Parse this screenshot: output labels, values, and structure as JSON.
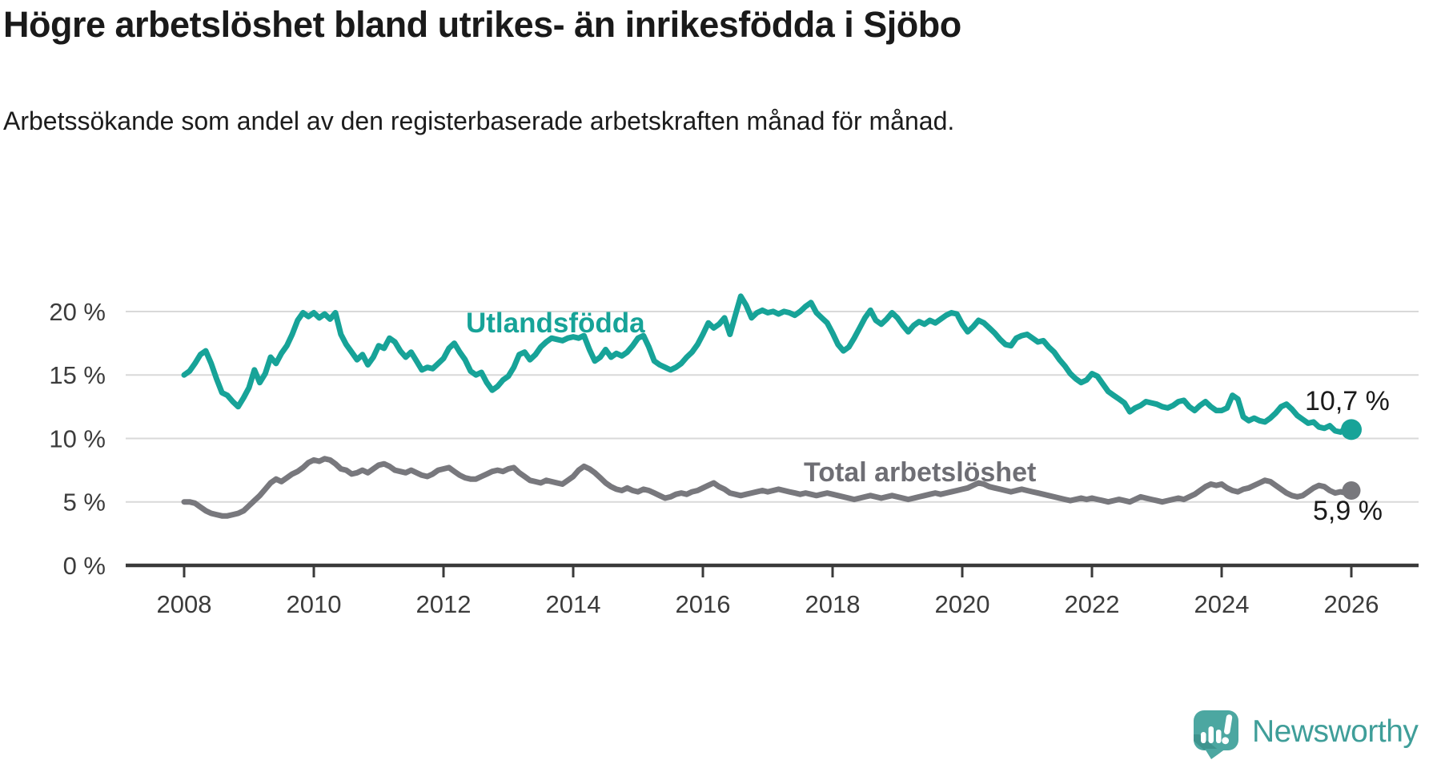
{
  "title": "Högre arbetslöshet bland utrikes- än inrikesfödda i Sjöbo",
  "subtitle": "Arbetssökande som andel av den registerbaserade arbetskraften månad för månad.",
  "branding": {
    "logo_text": "Newsworthy",
    "logo_color": "#3f9e99",
    "icon_color": "#4ca7a1",
    "icon_shadow_color": "#3e948e"
  },
  "colors": {
    "foreign_born_line": "#17a398",
    "total_line": "#78787d",
    "gridline": "#d9d9d9",
    "axis_line": "#3a3a3a",
    "axis_text": "#3c3c3c",
    "annotation_text": "#1a1a1a"
  },
  "chart_data": {
    "type": "line",
    "title": "Högre arbetslöshet bland utrikes- än inrikesfödda i Sjöbo",
    "subtitle": "Arbetssökande som andel av den registerbaserade arbetskraften månad för månad.",
    "unit": "%",
    "frequency": "monthly",
    "start_year": 2008,
    "end_year": 2026,
    "grid": "horizontal-only",
    "legend_position": "inline-labels",
    "x_axis": {
      "ticks": [
        2008,
        2010,
        2012,
        2014,
        2016,
        2018,
        2020,
        2022,
        2024,
        2026
      ],
      "tick_labels": [
        "2008",
        "2010",
        "2012",
        "2014",
        "2016",
        "2018",
        "2020",
        "2022",
        "2024",
        "2026"
      ]
    },
    "y_axis": {
      "min": 0,
      "max": 21.5,
      "ticks": [
        0,
        5,
        10,
        15,
        20
      ],
      "tick_labels": [
        "0 %",
        "5 %",
        "10 %",
        "15 %",
        "20 %"
      ]
    },
    "series": [
      {
        "name": "Utlandsfödda",
        "color": "#17a398",
        "end_label": "10,7 %",
        "end_value": 10.7,
        "values": [
          15.0,
          15.3,
          15.9,
          16.6,
          16.9,
          15.9,
          14.7,
          13.6,
          13.4,
          12.9,
          12.5,
          13.2,
          14.0,
          15.4,
          14.4,
          15.1,
          16.4,
          15.9,
          16.7,
          17.3,
          18.2,
          19.3,
          19.9,
          19.6,
          19.9,
          19.5,
          19.8,
          19.4,
          19.9,
          18.2,
          17.4,
          16.8,
          16.2,
          16.6,
          15.8,
          16.4,
          17.3,
          17.1,
          17.9,
          17.6,
          16.9,
          16.4,
          16.8,
          16.1,
          15.4,
          15.6,
          15.5,
          15.9,
          16.3,
          17.1,
          17.5,
          16.8,
          16.2,
          15.3,
          15.0,
          15.2,
          14.4,
          13.8,
          14.1,
          14.6,
          14.9,
          15.6,
          16.6,
          16.8,
          16.2,
          16.6,
          17.2,
          17.6,
          17.9,
          17.8,
          17.7,
          17.9,
          18.0,
          17.9,
          18.1,
          17.0,
          16.1,
          16.4,
          17.0,
          16.4,
          16.7,
          16.5,
          16.8,
          17.3,
          17.9,
          18.1,
          17.2,
          16.1,
          15.8,
          15.6,
          15.4,
          15.6,
          15.9,
          16.4,
          16.8,
          17.4,
          18.2,
          19.1,
          18.7,
          19.0,
          19.5,
          18.2,
          19.7,
          21.2,
          20.5,
          19.5,
          19.9,
          20.1,
          19.9,
          20.0,
          19.8,
          20.0,
          19.9,
          19.7,
          20.0,
          20.4,
          20.7,
          19.9,
          19.5,
          19.1,
          18.3,
          17.4,
          16.9,
          17.2,
          17.9,
          18.7,
          19.5,
          20.1,
          19.3,
          19.0,
          19.4,
          19.9,
          19.5,
          18.9,
          18.4,
          18.9,
          19.2,
          19.0,
          19.3,
          19.1,
          19.4,
          19.7,
          19.9,
          19.8,
          19.0,
          18.4,
          18.8,
          19.3,
          19.1,
          18.7,
          18.3,
          17.8,
          17.4,
          17.3,
          17.9,
          18.1,
          18.2,
          17.9,
          17.6,
          17.7,
          17.2,
          16.8,
          16.2,
          15.7,
          15.1,
          14.7,
          14.4,
          14.6,
          15.1,
          14.9,
          14.3,
          13.7,
          13.4,
          13.1,
          12.8,
          12.1,
          12.4,
          12.6,
          12.9,
          12.8,
          12.7,
          12.5,
          12.4,
          12.6,
          12.9,
          13.0,
          12.5,
          12.2,
          12.6,
          12.9,
          12.5,
          12.2,
          12.2,
          12.4,
          13.4,
          13.1,
          11.7,
          11.4,
          11.6,
          11.4,
          11.3,
          11.6,
          12.0,
          12.5,
          12.7,
          12.3,
          11.8,
          11.5,
          11.2,
          11.3,
          10.9,
          10.8,
          11.0,
          10.6,
          10.5,
          10.8,
          10.7
        ]
      },
      {
        "name": "Total arbetslöshet",
        "color": "#78787d",
        "end_label": "5,9 %",
        "end_value": 5.9,
        "values": [
          5.0,
          5.0,
          4.9,
          4.6,
          4.3,
          4.1,
          4.0,
          3.9,
          3.9,
          4.0,
          4.1,
          4.3,
          4.7,
          5.1,
          5.5,
          6.0,
          6.5,
          6.8,
          6.6,
          6.9,
          7.2,
          7.4,
          7.7,
          8.1,
          8.3,
          8.2,
          8.4,
          8.3,
          8.0,
          7.6,
          7.5,
          7.2,
          7.3,
          7.5,
          7.3,
          7.6,
          7.9,
          8.0,
          7.8,
          7.5,
          7.4,
          7.3,
          7.5,
          7.3,
          7.1,
          7.0,
          7.2,
          7.5,
          7.6,
          7.7,
          7.4,
          7.1,
          6.9,
          6.8,
          6.8,
          7.0,
          7.2,
          7.4,
          7.5,
          7.4,
          7.6,
          7.7,
          7.3,
          7.0,
          6.7,
          6.6,
          6.5,
          6.7,
          6.6,
          6.5,
          6.4,
          6.7,
          7.0,
          7.5,
          7.8,
          7.6,
          7.3,
          6.9,
          6.5,
          6.2,
          6.0,
          5.9,
          6.1,
          5.9,
          5.8,
          6.0,
          5.9,
          5.7,
          5.5,
          5.3,
          5.4,
          5.6,
          5.7,
          5.6,
          5.8,
          5.9,
          6.1,
          6.3,
          6.5,
          6.2,
          6.0,
          5.7,
          5.6,
          5.5,
          5.6,
          5.7,
          5.8,
          5.9,
          5.8,
          5.9,
          6.0,
          5.9,
          5.8,
          5.7,
          5.6,
          5.7,
          5.6,
          5.5,
          5.6,
          5.7,
          5.6,
          5.5,
          5.4,
          5.3,
          5.2,
          5.3,
          5.4,
          5.5,
          5.4,
          5.3,
          5.4,
          5.5,
          5.4,
          5.3,
          5.2,
          5.3,
          5.4,
          5.5,
          5.6,
          5.7,
          5.6,
          5.7,
          5.8,
          5.9,
          6.0,
          6.1,
          6.3,
          6.5,
          6.4,
          6.2,
          6.1,
          6.0,
          5.9,
          5.8,
          5.9,
          6.0,
          5.9,
          5.8,
          5.7,
          5.6,
          5.5,
          5.4,
          5.3,
          5.2,
          5.1,
          5.2,
          5.3,
          5.2,
          5.3,
          5.2,
          5.1,
          5.0,
          5.1,
          5.2,
          5.1,
          5.0,
          5.2,
          5.4,
          5.3,
          5.2,
          5.1,
          5.0,
          5.1,
          5.2,
          5.3,
          5.2,
          5.4,
          5.6,
          5.9,
          6.2,
          6.4,
          6.3,
          6.4,
          6.1,
          5.9,
          5.8,
          6.0,
          6.1,
          6.3,
          6.5,
          6.7,
          6.6,
          6.3,
          6.0,
          5.7,
          5.5,
          5.4,
          5.5,
          5.8,
          6.1,
          6.3,
          6.2,
          5.9,
          5.7,
          5.8,
          5.7,
          5.9
        ]
      }
    ]
  }
}
